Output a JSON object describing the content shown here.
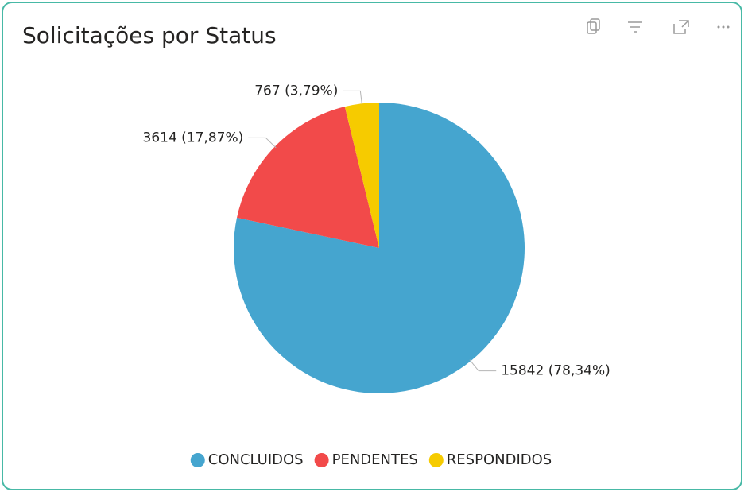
{
  "chart_data": {
    "type": "pie",
    "title": "Solicitações por Status",
    "categories": [
      "CONCLUIDOS",
      "PENDENTES",
      "RESPONDIDOS"
    ],
    "values": [
      15842,
      3614,
      767
    ],
    "value_labels": [
      "15842 (78,34%)",
      "3614 (17,87%)",
      "767 (3,79%)"
    ],
    "colors": [
      "#45a5cf",
      "#f24a4a",
      "#f6cb00"
    ],
    "legend": "bottom"
  }
}
